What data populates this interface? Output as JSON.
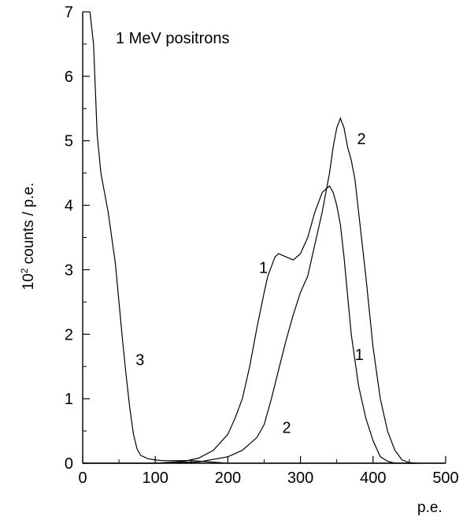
{
  "chart_data": {
    "type": "line",
    "title": "1 MeV positrons",
    "xlabel": "p.e.",
    "ylabel_base": "10",
    "ylabel_exp": "2",
    "ylabel_rest": " counts / p.e.",
    "xlim": [
      0,
      500
    ],
    "ylim": [
      0,
      7
    ],
    "x_ticks": [
      0,
      100,
      200,
      300,
      400,
      500
    ],
    "y_ticks": [
      0,
      1,
      2,
      3,
      4,
      5,
      6,
      7
    ],
    "grid": false,
    "series": [
      {
        "name": "1",
        "x": [
          0,
          100,
          140,
          160,
          180,
          200,
          210,
          220,
          230,
          240,
          250,
          255,
          260,
          265,
          270,
          280,
          290,
          300,
          310,
          320,
          330,
          340,
          345,
          350,
          355,
          360,
          365,
          370,
          380,
          390,
          400,
          410,
          420,
          430,
          460
        ],
        "y": [
          0,
          0,
          0.03,
          0.08,
          0.2,
          0.45,
          0.7,
          1.0,
          1.5,
          2.1,
          2.65,
          2.9,
          3.05,
          3.2,
          3.25,
          3.2,
          3.15,
          3.25,
          3.5,
          3.9,
          4.2,
          4.3,
          4.2,
          4.0,
          3.7,
          3.2,
          2.6,
          2.0,
          1.2,
          0.7,
          0.35,
          0.1,
          0.03,
          0.0,
          0.0
        ]
      },
      {
        "name": "2",
        "x": [
          0,
          100,
          160,
          200,
          220,
          240,
          250,
          260,
          270,
          280,
          290,
          300,
          310,
          320,
          330,
          340,
          345,
          350,
          355,
          360,
          365,
          370,
          375,
          380,
          390,
          400,
          410,
          420,
          430,
          440,
          450,
          460
        ],
        "y": [
          0,
          0,
          0.02,
          0.1,
          0.2,
          0.4,
          0.6,
          1.0,
          1.45,
          1.9,
          2.3,
          2.65,
          2.9,
          3.4,
          3.9,
          4.5,
          4.9,
          5.2,
          5.35,
          5.2,
          4.9,
          4.7,
          4.4,
          3.9,
          2.9,
          1.8,
          1.0,
          0.5,
          0.2,
          0.05,
          0.01,
          0.0
        ]
      },
      {
        "name": "3",
        "x": [
          10,
          15,
          20,
          25,
          30,
          35,
          40,
          45,
          50,
          55,
          60,
          65,
          70,
          75,
          80,
          90,
          100,
          110,
          120,
          150,
          200,
          500
        ],
        "y": [
          7.0,
          6.5,
          5.1,
          4.5,
          4.2,
          3.9,
          3.5,
          3.1,
          2.5,
          1.9,
          1.35,
          0.85,
          0.45,
          0.22,
          0.12,
          0.07,
          0.05,
          0.04,
          0.04,
          0.04,
          0.0,
          0.0
        ]
      }
    ],
    "annotations": [
      {
        "text": "1",
        "x": 243,
        "y": 2.95
      },
      {
        "text": "1",
        "x": 375,
        "y": 1.6
      },
      {
        "text": "2",
        "x": 378,
        "y": 4.95
      },
      {
        "text": "2",
        "x": 275,
        "y": 0.47
      },
      {
        "text": "3",
        "x": 73,
        "y": 1.52
      }
    ]
  }
}
